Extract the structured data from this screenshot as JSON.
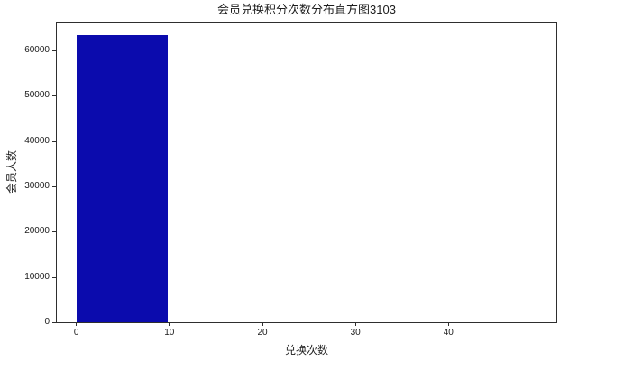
{
  "chart_data": {
    "type": "bar",
    "subtype": "histogram",
    "title": "会员兑换积分次数分布直方图3103",
    "xlabel": "兑换次数",
    "ylabel": "会员人数",
    "x_ticks": [
      0,
      10,
      20,
      30,
      40
    ],
    "y_ticks": [
      0,
      10000,
      20000,
      30000,
      40000,
      50000,
      60000
    ],
    "xlim": [
      -2.1,
      51.6
    ],
    "ylim": [
      0,
      66150
    ],
    "bin_edges": [
      0,
      9.8,
      19.6,
      29.4,
      39.2,
      49.0
    ],
    "counts": [
      63400,
      0,
      0,
      0,
      0
    ],
    "grid": false
  },
  "colors": {
    "bar": "#0b0bad",
    "spine": "#2e2e2e",
    "text": "#1c1c1c",
    "background": "#ffffff"
  }
}
